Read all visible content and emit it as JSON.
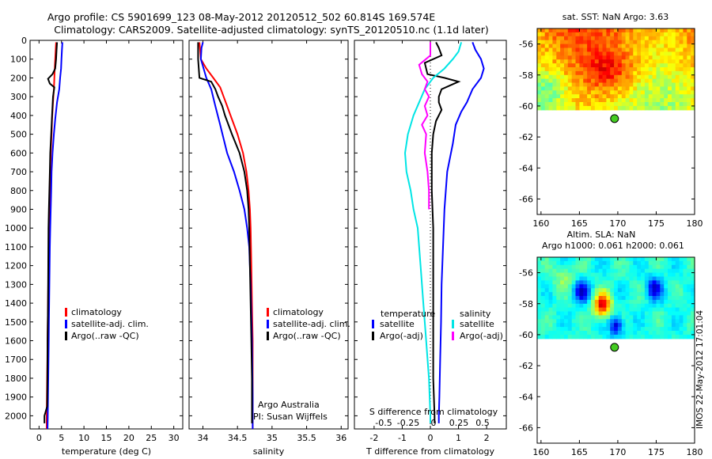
{
  "header": {
    "line1": "Argo profile: CS 5901699_123 08-May-2012 20120512_502 60.814S 169.574E",
    "line2": "Climatology: CARS2009. Satellite-adjusted climatology: synTS_20120510.nc (1.1d later)"
  },
  "colors": {
    "climatology": "#ff0000",
    "satellite": "#0000ff",
    "argo": "#000000",
    "argo_salinity_adj": "#ff00ff",
    "satellite_salinity": "#00e5e5",
    "float_marker": "#44cc22"
  },
  "chart_data": [
    {
      "id": "temperature",
      "type": "line",
      "xlabel": "temperature (deg C)",
      "xlim": [
        -2,
        32
      ],
      "xticks": [
        0,
        5,
        10,
        15,
        20,
        25,
        30
      ],
      "ylim": [
        0,
        2070
      ],
      "yticks": [
        0,
        100,
        200,
        300,
        400,
        500,
        600,
        700,
        800,
        900,
        1000,
        1100,
        1200,
        1300,
        1400,
        1500,
        1600,
        1700,
        1800,
        1900,
        2000
      ],
      "legend": [
        "climatology",
        "satellite-adj. clim.",
        "Argo(..raw -QC)"
      ],
      "series": [
        {
          "name": "climatology",
          "color": "#ff0000",
          "points": [
            [
              3.8,
              10
            ],
            [
              3.7,
              50
            ],
            [
              3.6,
              100
            ],
            [
              3.5,
              150
            ],
            [
              3.4,
              200
            ],
            [
              3.3,
              260
            ],
            [
              3.1,
              330
            ],
            [
              2.9,
              420
            ],
            [
              2.8,
              500
            ],
            [
              2.6,
              600
            ],
            [
              2.5,
              700
            ],
            [
              2.4,
              800
            ],
            [
              2.3,
              900
            ],
            [
              2.2,
              1000
            ],
            [
              2.15,
              1100
            ],
            [
              2.1,
              1200
            ],
            [
              2.05,
              1300
            ],
            [
              2.0,
              1400
            ],
            [
              1.95,
              1500
            ],
            [
              1.9,
              1600
            ],
            [
              1.85,
              1700
            ],
            [
              1.8,
              1800
            ],
            [
              1.75,
              1900
            ],
            [
              1.7,
              2000
            ],
            [
              1.7,
              2070
            ]
          ]
        },
        {
          "name": "satellite-adj. clim.",
          "color": "#0000ff",
          "points": [
            [
              5.2,
              10
            ],
            [
              5.1,
              50
            ],
            [
              5.0,
              100
            ],
            [
              4.9,
              150
            ],
            [
              4.7,
              200
            ],
            [
              4.5,
              260
            ],
            [
              4.0,
              330
            ],
            [
              3.6,
              420
            ],
            [
              3.3,
              500
            ],
            [
              3.0,
              600
            ],
            [
              2.8,
              700
            ],
            [
              2.7,
              800
            ],
            [
              2.6,
              900
            ],
            [
              2.5,
              1000
            ],
            [
              2.4,
              1100
            ],
            [
              2.35,
              1200
            ],
            [
              2.3,
              1300
            ],
            [
              2.25,
              1400
            ],
            [
              2.2,
              1500
            ],
            [
              2.15,
              1600
            ],
            [
              2.1,
              1700
            ],
            [
              2.05,
              1800
            ],
            [
              2.0,
              1900
            ],
            [
              1.95,
              2000
            ],
            [
              1.9,
              2070
            ]
          ]
        },
        {
          "name": "Argo(..raw -QC)",
          "color": "#000000",
          "points": [
            [
              4.0,
              10
            ],
            [
              3.9,
              50
            ],
            [
              3.8,
              100
            ],
            [
              3.6,
              150
            ],
            [
              3.0,
              180
            ],
            [
              2.0,
              205
            ],
            [
              2.4,
              230
            ],
            [
              3.4,
              250
            ],
            [
              3.1,
              300
            ],
            [
              2.9,
              400
            ],
            [
              2.7,
              500
            ],
            [
              2.5,
              600
            ],
            [
              2.4,
              700
            ],
            [
              2.3,
              800
            ],
            [
              2.2,
              900
            ],
            [
              2.1,
              1000
            ],
            [
              2.05,
              1200
            ],
            [
              2.0,
              1400
            ],
            [
              1.9,
              1600
            ],
            [
              1.85,
              1800
            ],
            [
              1.8,
              1950
            ],
            [
              1.2,
              2000
            ],
            [
              1.2,
              2040
            ]
          ]
        }
      ]
    },
    {
      "id": "salinity",
      "type": "line",
      "xlabel": "salinity",
      "xlim": [
        33.8,
        36.1
      ],
      "xticks": [
        34,
        34.5,
        35,
        35.5,
        36
      ],
      "ylim": [
        0,
        2070
      ],
      "legend": [
        "climatology",
        "satellite-adj. clim.",
        "Argo(..raw -QC)"
      ],
      "annotation": [
        "Argo Australia",
        "PI: Susan Wijffels"
      ],
      "series": [
        {
          "name": "climatology",
          "color": "#ff0000",
          "points": [
            [
              33.95,
              10
            ],
            [
              33.97,
              100
            ],
            [
              34.05,
              150
            ],
            [
              34.15,
              200
            ],
            [
              34.25,
              250
            ],
            [
              34.3,
              300
            ],
            [
              34.35,
              350
            ],
            [
              34.4,
              400
            ],
            [
              34.5,
              500
            ],
            [
              34.58,
              600
            ],
            [
              34.63,
              700
            ],
            [
              34.66,
              800
            ],
            [
              34.68,
              900
            ],
            [
              34.69,
              1000
            ],
            [
              34.7,
              1200
            ],
            [
              34.71,
              1400
            ],
            [
              34.72,
              1600
            ],
            [
              34.72,
              1800
            ],
            [
              34.72,
              2000
            ],
            [
              34.72,
              2070
            ]
          ]
        },
        {
          "name": "satellite-adj. clim.",
          "color": "#0000ff",
          "points": [
            [
              34.0,
              10
            ],
            [
              33.98,
              40
            ],
            [
              33.97,
              100
            ],
            [
              34.05,
              200
            ],
            [
              34.12,
              260
            ],
            [
              34.18,
              350
            ],
            [
              34.25,
              450
            ],
            [
              34.35,
              600
            ],
            [
              34.45,
              700
            ],
            [
              34.53,
              800
            ],
            [
              34.6,
              900
            ],
            [
              34.64,
              1000
            ],
            [
              34.67,
              1100
            ],
            [
              34.69,
              1300
            ],
            [
              34.71,
              1600
            ],
            [
              34.72,
              1900
            ],
            [
              34.72,
              2070
            ]
          ]
        },
        {
          "name": "Argo(..raw -QC)",
          "color": "#000000",
          "points": [
            [
              33.93,
              10
            ],
            [
              33.93,
              100
            ],
            [
              33.95,
              200
            ],
            [
              34.12,
              220
            ],
            [
              34.18,
              260
            ],
            [
              34.22,
              300
            ],
            [
              34.28,
              350
            ],
            [
              34.32,
              400
            ],
            [
              34.42,
              500
            ],
            [
              34.53,
              600
            ],
            [
              34.6,
              700
            ],
            [
              34.64,
              800
            ],
            [
              34.66,
              900
            ],
            [
              34.67,
              1000
            ],
            [
              34.68,
              1200
            ],
            [
              34.69,
              1400
            ],
            [
              34.7,
              1600
            ],
            [
              34.71,
              1800
            ],
            [
              34.71,
              2000
            ],
            [
              34.71,
              2040
            ]
          ]
        }
      ]
    },
    {
      "id": "difference",
      "type": "line",
      "xlabel": "T difference from climatology",
      "xlabel_top": "S difference from climatology",
      "xlim": [
        -2.7,
        2.7
      ],
      "xticks": [
        -2,
        -1,
        0,
        1,
        2
      ],
      "xticks_top": [
        -0.5,
        -0.25,
        0,
        0.25,
        0.5
      ],
      "ylim": [
        0,
        2070
      ],
      "legend_headers": [
        "temperature",
        "salinity"
      ],
      "legend": [
        "satellite",
        "Argo(-adj)",
        "satellite",
        "Argo(-adj)"
      ],
      "series": [
        {
          "name": "satellite",
          "quantity": "temperature",
          "color": "#0000ff",
          "points": [
            [
              1.5,
              10
            ],
            [
              1.6,
              50
            ],
            [
              1.8,
              100
            ],
            [
              1.9,
              150
            ],
            [
              1.8,
              200
            ],
            [
              1.5,
              260
            ],
            [
              1.3,
              330
            ],
            [
              1.1,
              380
            ],
            [
              0.9,
              450
            ],
            [
              0.8,
              550
            ],
            [
              0.6,
              700
            ],
            [
              0.5,
              900
            ],
            [
              0.45,
              1100
            ],
            [
              0.4,
              1300
            ],
            [
              0.38,
              1500
            ],
            [
              0.35,
              1700
            ],
            [
              0.32,
              1900
            ],
            [
              0.3,
              2000
            ],
            [
              0.3,
              2040
            ]
          ]
        },
        {
          "name": "Argo(-adj)",
          "quantity": "temperature",
          "color": "#000000",
          "points": [
            [
              0.2,
              10
            ],
            [
              0.3,
              40
            ],
            [
              0.4,
              80
            ],
            [
              -0.2,
              120
            ],
            [
              -0.1,
              180
            ],
            [
              0.5,
              200
            ],
            [
              1.0,
              220
            ],
            [
              0.4,
              260
            ],
            [
              0.3,
              300
            ],
            [
              0.3,
              330
            ],
            [
              0.4,
              370
            ],
            [
              0.2,
              430
            ],
            [
              0.1,
              500
            ],
            [
              0.05,
              600
            ],
            [
              0.05,
              800
            ],
            [
              0.1,
              1000
            ],
            [
              0.1,
              1400
            ],
            [
              0.1,
              1800
            ],
            [
              0.15,
              2000
            ],
            [
              0.15,
              2040
            ]
          ]
        },
        {
          "name": "satellite",
          "quantity": "salinity",
          "color": "#00e5e5",
          "points": [
            [
              1.1,
              10
            ],
            [
              1.0,
              60
            ],
            [
              0.8,
              100
            ],
            [
              0.5,
              150
            ],
            [
              0.1,
              200
            ],
            [
              -0.2,
              260
            ],
            [
              -0.4,
              330
            ],
            [
              -0.6,
              400
            ],
            [
              -0.8,
              500
            ],
            [
              -0.9,
              600
            ],
            [
              -0.85,
              700
            ],
            [
              -0.7,
              800
            ],
            [
              -0.6,
              900
            ],
            [
              -0.45,
              1000
            ],
            [
              -0.35,
              1200
            ],
            [
              -0.25,
              1400
            ],
            [
              -0.15,
              1600
            ],
            [
              -0.05,
              1800
            ],
            [
              0.0,
              2000
            ],
            [
              0.0,
              2040
            ]
          ]
        },
        {
          "name": "Argo(-adj)",
          "quantity": "salinity",
          "color": "#ff00ff",
          "points": [
            [
              0.0,
              10
            ],
            [
              0.0,
              80
            ],
            [
              -0.4,
              130
            ],
            [
              -0.3,
              180
            ],
            [
              -0.1,
              220
            ],
            [
              -0.2,
              260
            ],
            [
              -0.05,
              300
            ],
            [
              -0.2,
              350
            ],
            [
              -0.1,
              400
            ],
            [
              -0.3,
              450
            ],
            [
              -0.15,
              500
            ],
            [
              -0.2,
              600
            ],
            [
              -0.1,
              700
            ],
            [
              -0.05,
              800
            ],
            [
              -0.05,
              900
            ]
          ]
        }
      ]
    },
    {
      "id": "sst_map",
      "type": "heatmap",
      "title": "sat. SST: NaN Argo: 3.63",
      "xlim": [
        159.5,
        180
      ],
      "xticks": [
        160,
        165,
        170,
        175,
        180
      ],
      "ylim": [
        -67,
        -55
      ],
      "yticks": [
        -56,
        -58,
        -60,
        -62,
        -64,
        -66
      ],
      "data_lat_range": [
        -60.2,
        -55
      ],
      "float_position": {
        "lon": 169.574,
        "lat": -60.814
      }
    },
    {
      "id": "sla_map",
      "type": "heatmap",
      "title": "Altim. SLA: NaN",
      "subtitle": "Argo h1000: 0.061 h2000: 0.061",
      "xlim": [
        159.5,
        180
      ],
      "xticks": [
        160,
        165,
        170,
        175,
        180
      ],
      "ylim": [
        -67,
        -55
      ],
      "yticks": [
        -56,
        -58,
        -60,
        -62,
        -64,
        -66
      ],
      "data_lat_range": [
        -60.2,
        -55
      ],
      "float_position": {
        "lon": 169.574,
        "lat": -60.814
      }
    }
  ],
  "side_stamp": "IMOS 22-May-2012 17:01:04"
}
